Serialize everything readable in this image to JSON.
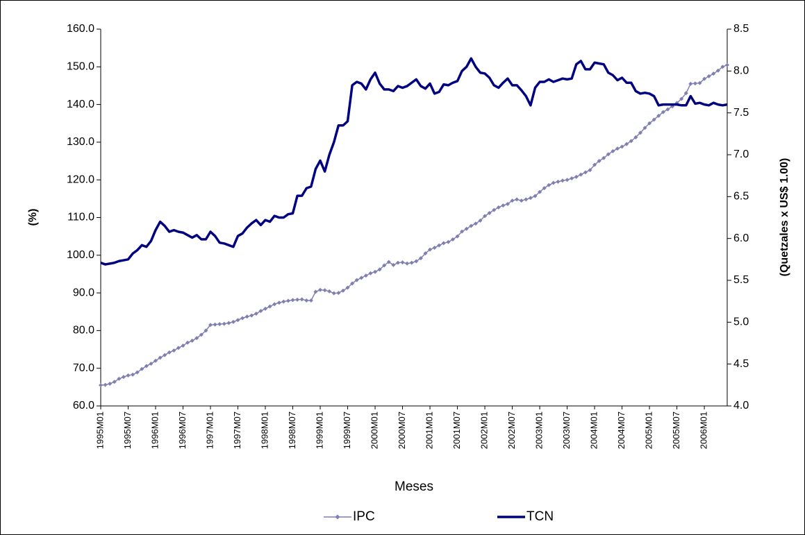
{
  "chart_data": {
    "type": "line",
    "x_label": "Meses",
    "y_label": "(%)",
    "y2_label": "(Quetzales x US$ 1.00)",
    "legend": "bottom",
    "categories": [
      "1995M01",
      null,
      null,
      null,
      null,
      null,
      "1995M07",
      null,
      null,
      null,
      null,
      null,
      "1996M01",
      null,
      null,
      null,
      null,
      null,
      "1996M07",
      null,
      null,
      null,
      null,
      null,
      "1997M01",
      null,
      null,
      null,
      null,
      null,
      "1997M07",
      null,
      null,
      null,
      null,
      null,
      "1998M01",
      null,
      null,
      null,
      null,
      null,
      "1998M07",
      null,
      null,
      null,
      null,
      null,
      "1999M01",
      null,
      null,
      null,
      null,
      null,
      "1999M07",
      null,
      null,
      null,
      null,
      null,
      "2000M01",
      null,
      null,
      null,
      null,
      null,
      "2000M07",
      null,
      null,
      null,
      null,
      null,
      "2001M01",
      null,
      null,
      null,
      null,
      null,
      "2001M07",
      null,
      null,
      null,
      null,
      null,
      "2002M01",
      null,
      null,
      null,
      null,
      null,
      "2002M07",
      null,
      null,
      null,
      null,
      null,
      "2003M01",
      null,
      null,
      null,
      null,
      null,
      "2003M07",
      null,
      null,
      null,
      null,
      null,
      "2004M01",
      null,
      null,
      null,
      null,
      null,
      "2004M07",
      null,
      null,
      null,
      null,
      null,
      "2005M01",
      null,
      null,
      null,
      null,
      null,
      "2005M07",
      null,
      null,
      null,
      null,
      null,
      "2006M01",
      null,
      null,
      null,
      null,
      null
    ],
    "ylim": [
      60,
      160
    ],
    "yticks": [
      {
        "value": 60,
        "label": "60.0"
      },
      {
        "value": 70,
        "label": "70.0"
      },
      {
        "value": 80,
        "label": "80.0"
      },
      {
        "value": 90,
        "label": "90.0"
      },
      {
        "value": 100,
        "label": "100.0"
      },
      {
        "value": 110,
        "label": "110.0"
      },
      {
        "value": 120,
        "label": "120.0"
      },
      {
        "value": 130,
        "label": "130.0"
      },
      {
        "value": 140,
        "label": "140.0"
      },
      {
        "value": 150,
        "label": "150.0"
      },
      {
        "value": 160,
        "label": "160.0"
      }
    ],
    "y2lim": [
      4,
      8.5
    ],
    "y2ticks": [
      {
        "value": 4,
        "label": "4.0"
      },
      4.5,
      {
        "value": 5,
        "label": "5.0"
      },
      5.5,
      {
        "value": 6,
        "label": "6.0"
      },
      6.5,
      {
        "value": 7,
        "label": "7.0"
      },
      7.5,
      {
        "value": 8,
        "label": "8.0"
      },
      8.5
    ],
    "series": [
      {
        "name": "IPC",
        "color": "#7f7fb2",
        "marker": "diamond",
        "values": [
          65.5,
          65.6,
          65.9,
          66.4,
          67.2,
          67.7,
          68.1,
          68.3,
          68.9,
          69.8,
          70.6,
          71.2,
          72.0,
          72.8,
          73.5,
          74.2,
          74.7,
          75.4,
          76.0,
          76.8,
          77.3,
          78.0,
          78.9,
          80.0,
          81.5,
          81.6,
          81.7,
          81.8,
          82.0,
          82.3,
          82.8,
          83.3,
          83.7,
          84.0,
          84.5,
          85.2,
          85.8,
          86.4,
          87.0,
          87.4,
          87.7,
          87.9,
          88.1,
          88.2,
          88.3,
          88.0,
          88.0,
          90.3,
          90.8,
          90.7,
          90.4,
          89.9,
          90.0,
          90.6,
          91.4,
          92.5,
          93.4,
          94.0,
          94.6,
          95.2,
          95.6,
          96.2,
          97.3,
          98.2,
          97.4,
          98.0,
          98.1,
          97.8,
          98.0,
          98.4,
          99.2,
          100.5,
          101.5,
          102.0,
          102.6,
          103.2,
          103.5,
          104.2,
          105.0,
          106.3,
          107.0,
          107.8,
          108.4,
          109.2,
          110.4,
          111.2,
          112.0,
          112.7,
          113.2,
          113.6,
          114.5,
          114.8,
          114.5,
          114.8,
          115.2,
          115.7,
          116.8,
          117.8,
          118.6,
          119.2,
          119.5,
          119.8,
          120.0,
          120.4,
          120.8,
          121.4,
          122.0,
          122.6,
          124.0,
          125.0,
          125.8,
          126.8,
          127.6,
          128.3,
          128.8,
          129.5,
          130.3,
          131.3,
          132.5,
          133.8,
          135.0,
          136.0,
          137.0,
          138.0,
          138.7,
          139.5,
          140.4,
          141.5,
          143.0,
          145.5,
          145.6,
          145.7,
          146.8,
          147.5,
          148.2,
          149.0,
          150.0,
          150.5
        ]
      },
      {
        "name": "TCN",
        "color": "#000080",
        "axis": "y2",
        "values": [
          5.71,
          5.69,
          5.7,
          5.71,
          5.73,
          5.74,
          5.75,
          5.82,
          5.86,
          5.92,
          5.9,
          5.97,
          6.1,
          6.2,
          6.15,
          6.08,
          6.1,
          6.08,
          6.07,
          6.04,
          6.01,
          6.04,
          5.99,
          5.99,
          6.08,
          6.03,
          5.95,
          5.94,
          5.92,
          5.9,
          6.03,
          6.06,
          6.13,
          6.18,
          6.22,
          6.16,
          6.22,
          6.2,
          6.27,
          6.25,
          6.25,
          6.29,
          6.3,
          6.51,
          6.51,
          6.6,
          6.62,
          6.83,
          6.93,
          6.8,
          7.0,
          7.15,
          7.35,
          7.35,
          7.4,
          7.83,
          7.87,
          7.85,
          7.78,
          7.9,
          7.98,
          7.85,
          7.78,
          7.78,
          7.76,
          7.82,
          7.8,
          7.82,
          7.86,
          7.9,
          7.82,
          7.79,
          7.85,
          7.73,
          7.75,
          7.84,
          7.83,
          7.86,
          7.88,
          8.0,
          8.05,
          8.15,
          8.05,
          7.98,
          7.97,
          7.92,
          7.83,
          7.8,
          7.86,
          7.91,
          7.83,
          7.83,
          7.77,
          7.7,
          7.59,
          7.8,
          7.87,
          7.87,
          7.9,
          7.87,
          7.89,
          7.91,
          7.9,
          7.91,
          8.08,
          8.12,
          8.02,
          8.02,
          8.1,
          8.09,
          8.08,
          7.98,
          7.95,
          7.89,
          7.92,
          7.86,
          7.86,
          7.76,
          7.73,
          7.74,
          7.73,
          7.7,
          7.59,
          7.6,
          7.6,
          7.6,
          7.6,
          7.59,
          7.59,
          7.7,
          7.61,
          7.62,
          7.6,
          7.59,
          7.62,
          7.6,
          7.59,
          7.6
        ]
      }
    ]
  }
}
